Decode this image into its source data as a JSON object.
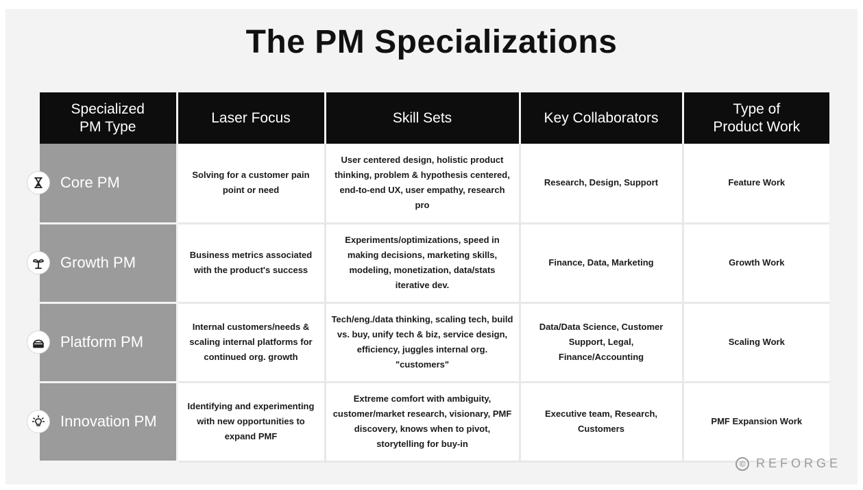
{
  "title": "The PM Specializations",
  "headers": [
    "Specialized PM Type",
    "Laser Focus",
    "Skill Sets",
    "Key Collaborators",
    "Type of Product Work"
  ],
  "header_lines": [
    [
      "Specialized",
      "PM Type"
    ],
    [
      "Laser Focus"
    ],
    [
      "Skill Sets"
    ],
    [
      "Key Collaborators"
    ],
    [
      "Type of",
      "Product Work"
    ]
  ],
  "rows": [
    {
      "icon": "hourglass-icon",
      "type": "Core PM",
      "focus": "Solving for a customer pain point or need",
      "skills": "User centered design, holistic product thinking, problem & hypothesis centered, end-to-end UX, user empathy, research pro",
      "collaborators": "Research, Design, Support",
      "work": "Feature Work"
    },
    {
      "icon": "sprout-icon",
      "type": "Growth PM",
      "focus": "Business metrics associated with the product's success",
      "skills": "Experiments/optimizations, speed in making decisions, marketing skills, modeling, monetization, data/stats iterative dev.",
      "collaborators": "Finance, Data, Marketing",
      "work": "Growth Work"
    },
    {
      "icon": "server-icon",
      "type": "Platform PM",
      "focus": "Internal customers/needs & scaling internal platforms for continued org. growth",
      "skills": "Tech/eng./data thinking, scaling tech, build vs. buy, unify tech & biz, service design, efficiency, juggles internal org. \"customers\"",
      "collaborators": "Data/Data Science, Customer Support, Legal, Finance/Accounting",
      "work": "Scaling Work"
    },
    {
      "icon": "lightbulb-icon",
      "type": "Innovation PM",
      "focus": "Identifying and experimenting with new opportunities to expand PMF",
      "skills": "Extreme comfort with ambiguity, customer/market research, visionary, PMF discovery, knows when to pivot, storytelling for buy-in",
      "collaborators": "Executive team, Research, Customers",
      "work": "PMF Expansion Work"
    }
  ],
  "watermark": {
    "symbol": "©",
    "text": "REFORGE"
  },
  "colors": {
    "header_bg": "#0d0d0d",
    "type_col_bg": "#9b9b9b",
    "canvas_bg": "#f3f3f3"
  }
}
